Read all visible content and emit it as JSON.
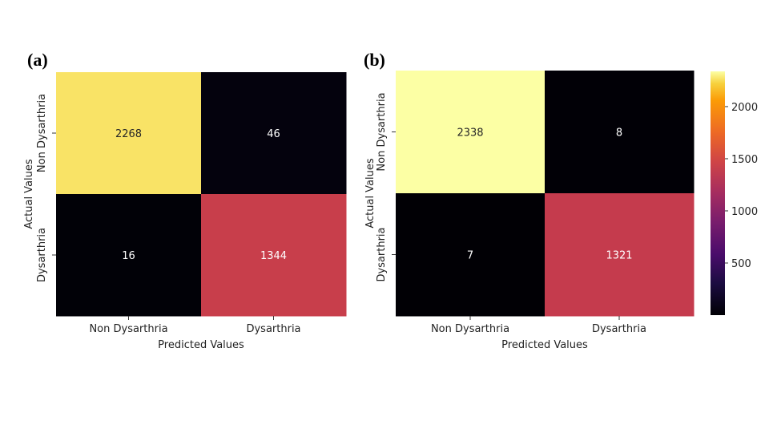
{
  "chart_data": [
    {
      "type": "heatmap",
      "panel_label": "(a)",
      "rows": [
        "Non Dysarthria",
        "Dysarthria"
      ],
      "columns": [
        "Non Dysarthria",
        "Dysarthria"
      ],
      "values": [
        [
          2268,
          46
        ],
        [
          16,
          1344
        ]
      ],
      "xlabel": "Predicted Values",
      "ylabel": "Actual Values",
      "colormap": "inferno",
      "vmax": 2338
    },
    {
      "type": "heatmap",
      "panel_label": "(b)",
      "rows": [
        "Non Dysarthria",
        "Dysarthria"
      ],
      "columns": [
        "Non Dysarthria",
        "Dysarthria"
      ],
      "values": [
        [
          2338,
          8
        ],
        [
          7,
          1321
        ]
      ],
      "xlabel": "Predicted Values",
      "ylabel": "Actual Values",
      "colormap": "inferno",
      "vmax": 2338,
      "colorbar": {
        "ticks": [
          500,
          1000,
          1500,
          2000
        ],
        "range": [
          0,
          2338
        ]
      }
    }
  ]
}
